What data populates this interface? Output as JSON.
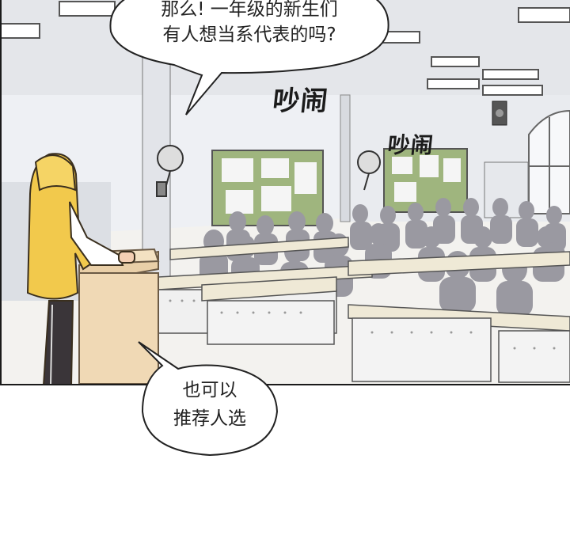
{
  "speech_top": {
    "lines": [
      "那么! 一年级的新生们",
      "有人想当系代表的吗?"
    ]
  },
  "speech_bottom": {
    "lines": [
      "也可以",
      "推荐人选"
    ]
  },
  "sfx": {
    "noise_1": "吵闹",
    "noise_2": "吵闹"
  },
  "colors": {
    "hoodie": "#f2c94c",
    "board": "#9fb57e",
    "silhouette": "#8f8f96",
    "wall": "#eef0f4",
    "ink": "#1a1a1a"
  }
}
